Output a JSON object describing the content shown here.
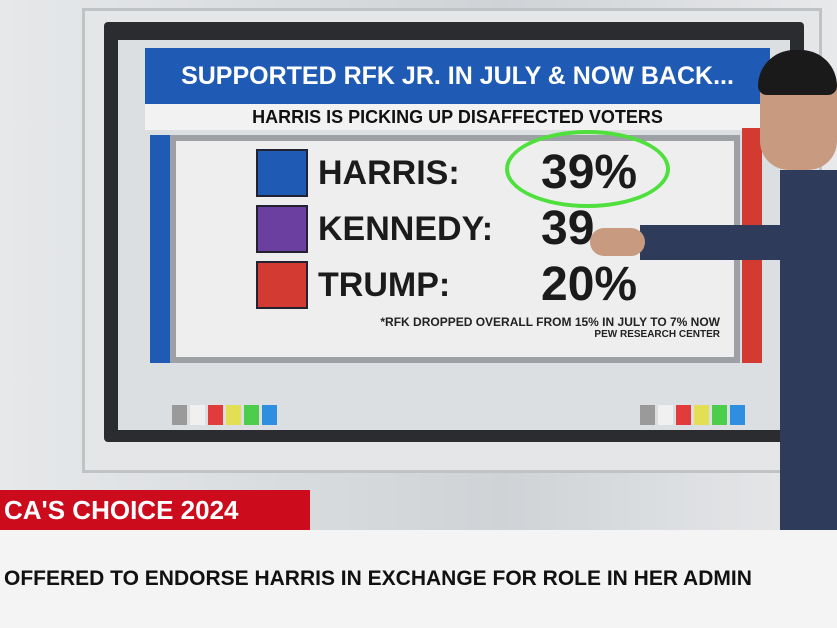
{
  "graphic": {
    "title": "SUPPORTED RFK JR. IN JULY & NOW BACK...",
    "subtitle": "HARRIS IS PICKING UP DISAFFECTED VOTERS",
    "rows": [
      {
        "name": "HARRIS:",
        "value": "39%",
        "photo_color": "#1f5bb5"
      },
      {
        "name": "KENNEDY:",
        "value": "39",
        "photo_color": "#6a3fa0"
      },
      {
        "name": "TRUMP:",
        "value": "20%",
        "photo_color": "#d23a32"
      }
    ],
    "footnote": "*RFK DROPPED OVERALL FROM 15% IN JULY TO 7% NOW",
    "source": "PEW RESEARCH CENTER",
    "annotation_color": "#4fe03d",
    "chip_colors": [
      "#9a9a9a",
      "#f0f0f0",
      "#e23b3b",
      "#e3df55",
      "#4ccd4c",
      "#2e8ee0"
    ]
  },
  "lower_third": {
    "label": "CA'S CHOICE 2024",
    "headline": "OFFERED TO ENDORSE HARRIS IN EXCHANGE FOR ROLE IN HER ADMIN",
    "accent": "#cc0c1c"
  }
}
